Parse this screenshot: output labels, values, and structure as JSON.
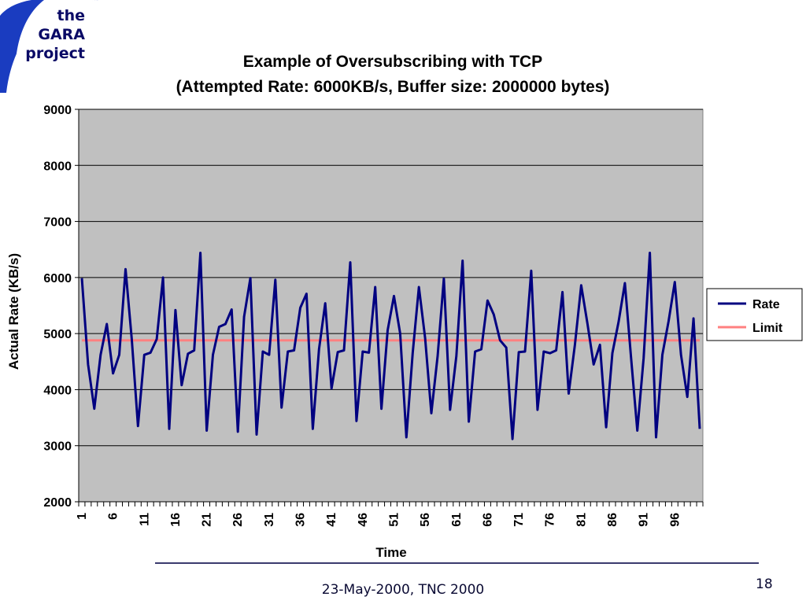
{
  "logo": {
    "lines": [
      "the",
      "GARA",
      "project"
    ]
  },
  "colors": {
    "accent": "#1a3cc0",
    "rate": "#000080",
    "limit": "#ff8080",
    "plot_bg": "#c0c0c0"
  },
  "chart_data": {
    "type": "line",
    "title": "Example of Oversubscribing with TCP",
    "subtitle": "(Attempted Rate: 6000KB/s, Buffer size: 2000000 bytes)",
    "xlabel": "Time",
    "ylabel": "Actual Rate (KB/s)",
    "ylim": [
      2000,
      9000
    ],
    "yticks": [
      2000,
      3000,
      4000,
      5000,
      6000,
      7000,
      8000,
      9000
    ],
    "xlim": [
      1,
      100
    ],
    "xtick_labels": [
      "1",
      "6",
      "11",
      "16",
      "21",
      "26",
      "31",
      "36",
      "41",
      "46",
      "51",
      "56",
      "61",
      "66",
      "71",
      "76",
      "81",
      "86",
      "91",
      "96"
    ],
    "grid": "horizontal",
    "legend_position": "right",
    "series": [
      {
        "name": "Rate",
        "color": "#000080",
        "values": [
          5990,
          4450,
          3660,
          4620,
          5170,
          4290,
          4620,
          6150,
          4900,
          3350,
          4620,
          4660,
          4900,
          6000,
          3300,
          5420,
          4080,
          4640,
          4700,
          6440,
          3270,
          4620,
          5120,
          5170,
          5430,
          3250,
          5300,
          5990,
          3200,
          4680,
          4620,
          5960,
          3680,
          4680,
          4700,
          5460,
          5710,
          3300,
          4720,
          5540,
          4020,
          4670,
          4700,
          6270,
          3440,
          4680,
          4660,
          5830,
          3660,
          5060,
          5670,
          5000,
          3150,
          4650,
          5830,
          4920,
          3580,
          4600,
          5980,
          3640,
          4600,
          6300,
          3430,
          4680,
          4720,
          5590,
          5340,
          4880,
          4750,
          3120,
          4670,
          4680,
          6120,
          3640,
          4680,
          4650,
          4700,
          5740,
          3930,
          4800,
          5860,
          5180,
          4450,
          4800,
          3330,
          4650,
          5210,
          5900,
          4560,
          3270,
          4560,
          6440,
          3150,
          4620,
          5220,
          5920,
          4620,
          3870,
          5270,
          3300
        ]
      },
      {
        "name": "Limit",
        "color": "#ff8080",
        "values": [
          4880,
          4880
        ]
      }
    ]
  },
  "footer": {
    "date_venue": "23-May-2000, TNC 2000",
    "page_number": "18"
  }
}
